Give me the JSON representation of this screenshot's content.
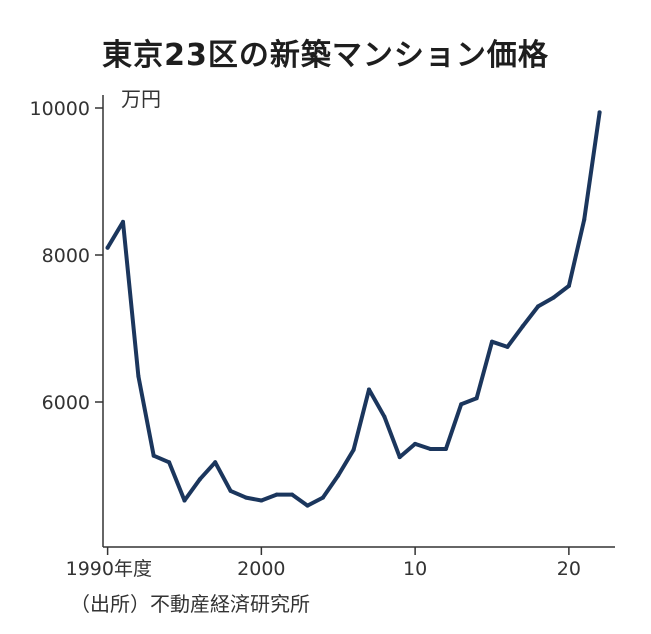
{
  "chart_data": {
    "type": "line",
    "title": "東京23区の新築マンション価格",
    "ylabel": "万円",
    "ylim": [
      4500,
      10000
    ],
    "xlim": [
      1989.7,
      2023
    ],
    "x": [
      1990,
      1991,
      1992,
      1993,
      1994,
      1995,
      1996,
      1997,
      1998,
      1999,
      2000,
      2001,
      2002,
      2003,
      2004,
      2005,
      2006,
      2007,
      2008,
      2009,
      2010,
      2011,
      2012,
      2013,
      2014,
      2015,
      2016,
      2017,
      2018,
      2019,
      2020,
      2021,
      2022
    ],
    "series": [
      {
        "values": [
          8100,
          8450,
          6350,
          5270,
          5180,
          4660,
          4950,
          5180,
          4790,
          4700,
          4660,
          4740,
          4740,
          4590,
          4700,
          5000,
          5350,
          6170,
          5800,
          5250,
          5430,
          5360,
          5360,
          5970,
          6050,
          6820,
          6750,
          7030,
          7300,
          7420,
          7580,
          8480,
          9940
        ]
      }
    ],
    "yticks": [
      6000,
      8000,
      10000
    ],
    "xticks": [
      {
        "value": 1990,
        "label": "1990年度"
      },
      {
        "value": 2000,
        "label": "2000"
      },
      {
        "value": 2010,
        "label": "10"
      },
      {
        "value": 2020,
        "label": "20"
      }
    ],
    "grid": false,
    "line_color": "#1b365d"
  },
  "source": "（出所）不動産経済研究所"
}
